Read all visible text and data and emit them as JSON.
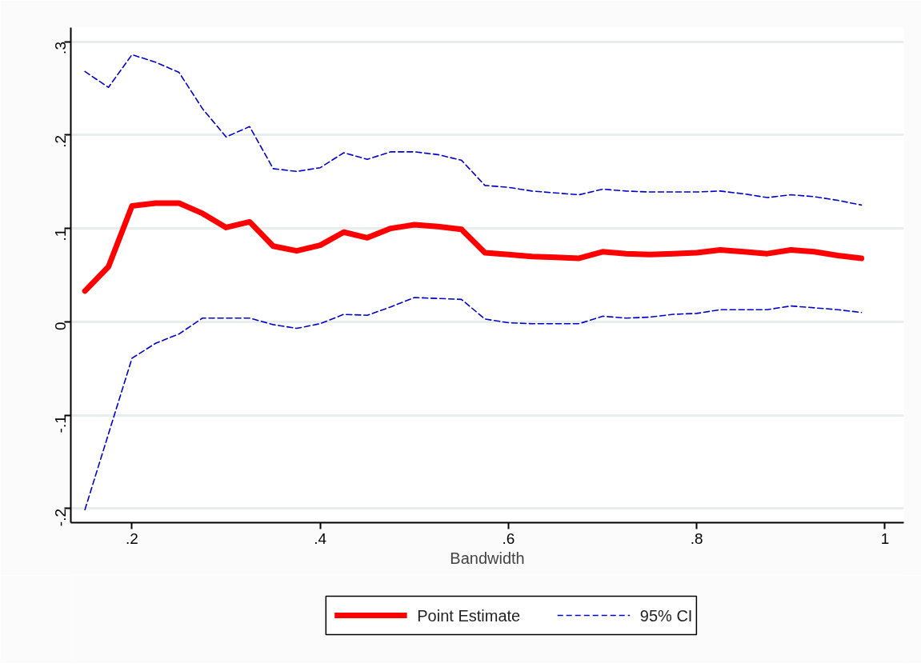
{
  "chart_data": {
    "type": "line",
    "xlabel": "Bandwidth",
    "x": [
      0.15,
      0.175,
      0.2,
      0.225,
      0.25,
      0.275,
      0.3,
      0.325,
      0.35,
      0.375,
      0.4,
      0.425,
      0.45,
      0.475,
      0.5,
      0.525,
      0.55,
      0.575,
      0.6,
      0.625,
      0.65,
      0.675,
      0.7,
      0.725,
      0.75,
      0.775,
      0.8,
      0.825,
      0.85,
      0.875,
      0.9,
      0.925,
      0.95,
      0.975
    ],
    "series": [
      {
        "name": "Point Estimate",
        "color": "#ff0000",
        "line_style": "solid",
        "values": [
          0.033,
          0.059,
          0.124,
          0.127,
          0.127,
          0.116,
          0.101,
          0.107,
          0.081,
          0.076,
          0.082,
          0.096,
          0.09,
          0.1,
          0.104,
          0.102,
          0.099,
          0.074,
          0.072,
          0.07,
          0.069,
          0.068,
          0.075,
          0.073,
          0.072,
          0.073,
          0.074,
          0.077,
          0.075,
          0.073,
          0.077,
          0.075,
          0.071,
          0.068
        ]
      },
      {
        "name": "95% CI",
        "color": "#0000cc",
        "line_style": "dashed",
        "values": [
          0.268,
          0.251,
          0.286,
          0.278,
          0.267,
          0.228,
          0.198,
          0.209,
          0.164,
          0.161,
          0.165,
          0.181,
          0.174,
          0.182,
          0.182,
          0.179,
          0.173,
          0.146,
          0.144,
          0.14,
          0.138,
          0.136,
          0.142,
          0.14,
          0.139,
          0.139,
          0.139,
          0.14,
          0.137,
          0.133,
          0.136,
          0.134,
          0.13,
          0.125
        ]
      },
      {
        "color": "#0000cc",
        "line_style": "dashed",
        "values": [
          -0.201,
          -0.12,
          -0.039,
          -0.023,
          -0.013,
          0.004,
          0.004,
          0.004,
          -0.003,
          -0.007,
          -0.002,
          0.008,
          0.007,
          0.016,
          0.026,
          0.025,
          0.024,
          0.003,
          -0.001,
          -0.002,
          -0.002,
          -0.002,
          0.006,
          0.004,
          0.005,
          0.008,
          0.009,
          0.013,
          0.013,
          0.013,
          0.017,
          0.015,
          0.013,
          0.01
        ]
      }
    ],
    "xlim": [
      0.135,
      1.02
    ],
    "ylim": [
      -0.215,
      0.315
    ],
    "xticks": [
      {
        "value": 0.2,
        "label": ".2"
      },
      {
        "value": 0.4,
        "label": ".4"
      },
      {
        "value": 0.6,
        "label": ".6"
      },
      {
        "value": 0.8,
        "label": ".8"
      },
      1
    ],
    "yticks": [
      {
        "value": -0.2,
        "label": "-.2"
      },
      {
        "value": -0.1,
        "label": "-.1"
      },
      0,
      {
        "value": 0.1,
        "label": ".1"
      },
      {
        "value": 0.2,
        "label": ".2"
      },
      {
        "value": 0.3,
        "label": ".3"
      }
    ],
    "grid": "y",
    "legend": "bottom",
    "marker": "none"
  }
}
